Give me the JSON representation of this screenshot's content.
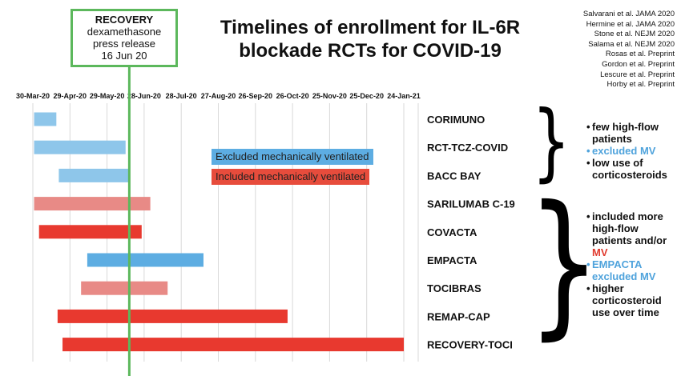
{
  "title": "Timelines of enrollment for IL-6R blockade RCTs for COVID-19",
  "references": [
    "Salvarani et al. JAMA 2020",
    "Hermine et al. JAMA 2020",
    "Stone et al. NEJM 2020",
    "Salama et al. NEJM 2020",
    "Rosas et al. Preprint",
    "Gordon et al. Preprint",
    "Lescure et al. Preprint",
    "Horby et al. Preprint"
  ],
  "recovery_marker": {
    "line1": "RECOVERY",
    "line2": "dexamethasone",
    "line3": "press release",
    "line4": "16 Jun 20",
    "date": "2020-06-16",
    "color": "#5cb85c"
  },
  "legend": {
    "excluded": "Excluded mechanically ventilated",
    "included": "Included mechanically ventilated"
  },
  "annotations": {
    "group1": [
      "few high-flow patients",
      "excluded MV",
      "low use of corticosteroids"
    ],
    "group2": [
      "included more high-flow patients and/or",
      "MV",
      "EMPACTA excluded MV",
      "higher corticosteroid use over time"
    ]
  },
  "colors": {
    "excluded": "#8ec6ea",
    "included": "#e8392f",
    "included_light": "#e88a86",
    "grid": "#d9d9d9",
    "marker": "#5cb85c"
  },
  "chart_data": {
    "type": "bar",
    "orientation": "horizontal",
    "x_ticks": [
      "30-Mar-20",
      "29-Apr-20",
      "29-May-20",
      "28-Jun-20",
      "28-Jul-20",
      "27-Aug-20",
      "26-Sep-20",
      "26-Oct-20",
      "25-Nov-20",
      "25-Dec-20",
      "24-Jan-21"
    ],
    "x_tick_dates": [
      "2020-03-30",
      "2020-04-29",
      "2020-05-29",
      "2020-06-28",
      "2020-07-28",
      "2020-08-27",
      "2020-09-26",
      "2020-10-26",
      "2020-11-25",
      "2020-12-25",
      "2021-01-24"
    ],
    "series": [
      {
        "name": "Excluded mechanically ventilated",
        "color": "#8ec6ea"
      },
      {
        "name": "Included mechanically ventilated",
        "color": "#e8392f"
      }
    ],
    "trials": [
      {
        "name": "CORIMUNO",
        "start": "2020-03-31",
        "end": "2020-04-18",
        "series": "Excluded mechanically ventilated",
        "shade": "#8ec6ea"
      },
      {
        "name": "RCT-TCZ-COVID",
        "start": "2020-03-31",
        "end": "2020-06-13",
        "series": "Excluded mechanically ventilated",
        "shade": "#8ec6ea"
      },
      {
        "name": "BACC BAY",
        "start": "2020-04-20",
        "end": "2020-06-16",
        "series": "Excluded mechanically ventilated",
        "shade": "#8ec6ea"
      },
      {
        "name": "SARILUMAB C-19",
        "start": "2020-03-31",
        "end": "2020-07-03",
        "series": "Included mechanically ventilated",
        "shade": "#e88a86"
      },
      {
        "name": "COVACTA",
        "start": "2020-04-04",
        "end": "2020-06-26",
        "series": "Included mechanically ventilated",
        "shade": "#e8392f"
      },
      {
        "name": "EMPACTA",
        "start": "2020-05-13",
        "end": "2020-08-15",
        "series": "Excluded mechanically ventilated",
        "shade": "#5dade2"
      },
      {
        "name": "TOCIBRAS",
        "start": "2020-05-08",
        "end": "2020-07-17",
        "series": "Included mechanically ventilated",
        "shade": "#e88a86"
      },
      {
        "name": "REMAP-CAP",
        "start": "2020-04-19",
        "end": "2020-10-22",
        "series": "Included mechanically ventilated",
        "shade": "#e8392f"
      },
      {
        "name": "RECOVERY-TOCI",
        "start": "2020-04-23",
        "end": "2021-01-24",
        "series": "Included mechanically ventilated",
        "shade": "#e8392f"
      }
    ]
  }
}
